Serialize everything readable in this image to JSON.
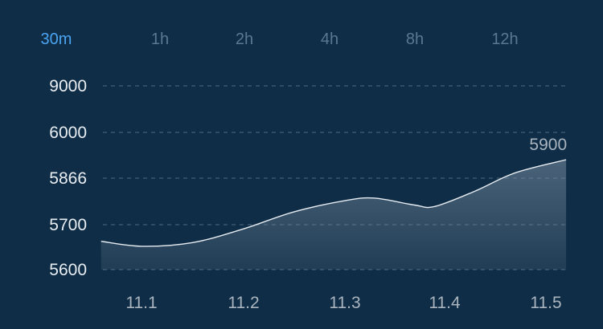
{
  "header": {
    "tabs": [
      {
        "label": "30m",
        "active": true
      },
      {
        "label": "1h",
        "active": false
      },
      {
        "label": "2h",
        "active": false
      },
      {
        "label": "4h",
        "active": false
      },
      {
        "label": "8h",
        "active": false
      },
      {
        "label": "12h",
        "active": false
      }
    ]
  },
  "colors": {
    "background": "#0f2d46",
    "active_tab": "#4aa3f0",
    "inactive_tab": "#5b7890",
    "line": "#e6ecf1",
    "grid": "#4f6a80"
  },
  "chart_data": {
    "type": "area",
    "y_ticks": [
      "9000",
      "6000",
      "5866",
      "5700",
      "5600"
    ],
    "x_ticks": [
      "11.1",
      "11.2",
      "11.3",
      "11.4",
      "11.5"
    ],
    "grid": "dashed-horizontal",
    "series": [
      {
        "points": [
          {
            "x": 11.06,
            "y": 5663
          },
          {
            "x": 11.1,
            "y": 5652
          },
          {
            "x": 11.15,
            "y": 5660
          },
          {
            "x": 11.2,
            "y": 5690
          },
          {
            "x": 11.25,
            "y": 5745
          },
          {
            "x": 11.3,
            "y": 5785
          },
          {
            "x": 11.33,
            "y": 5795
          },
          {
            "x": 11.37,
            "y": 5770
          },
          {
            "x": 11.39,
            "y": 5765
          },
          {
            "x": 11.43,
            "y": 5820
          },
          {
            "x": 11.47,
            "y": 5882
          },
          {
            "x": 11.52,
            "y": 5920
          }
        ]
      }
    ],
    "annotation": {
      "text": "5900",
      "x": 11.52,
      "y": 5920
    }
  }
}
